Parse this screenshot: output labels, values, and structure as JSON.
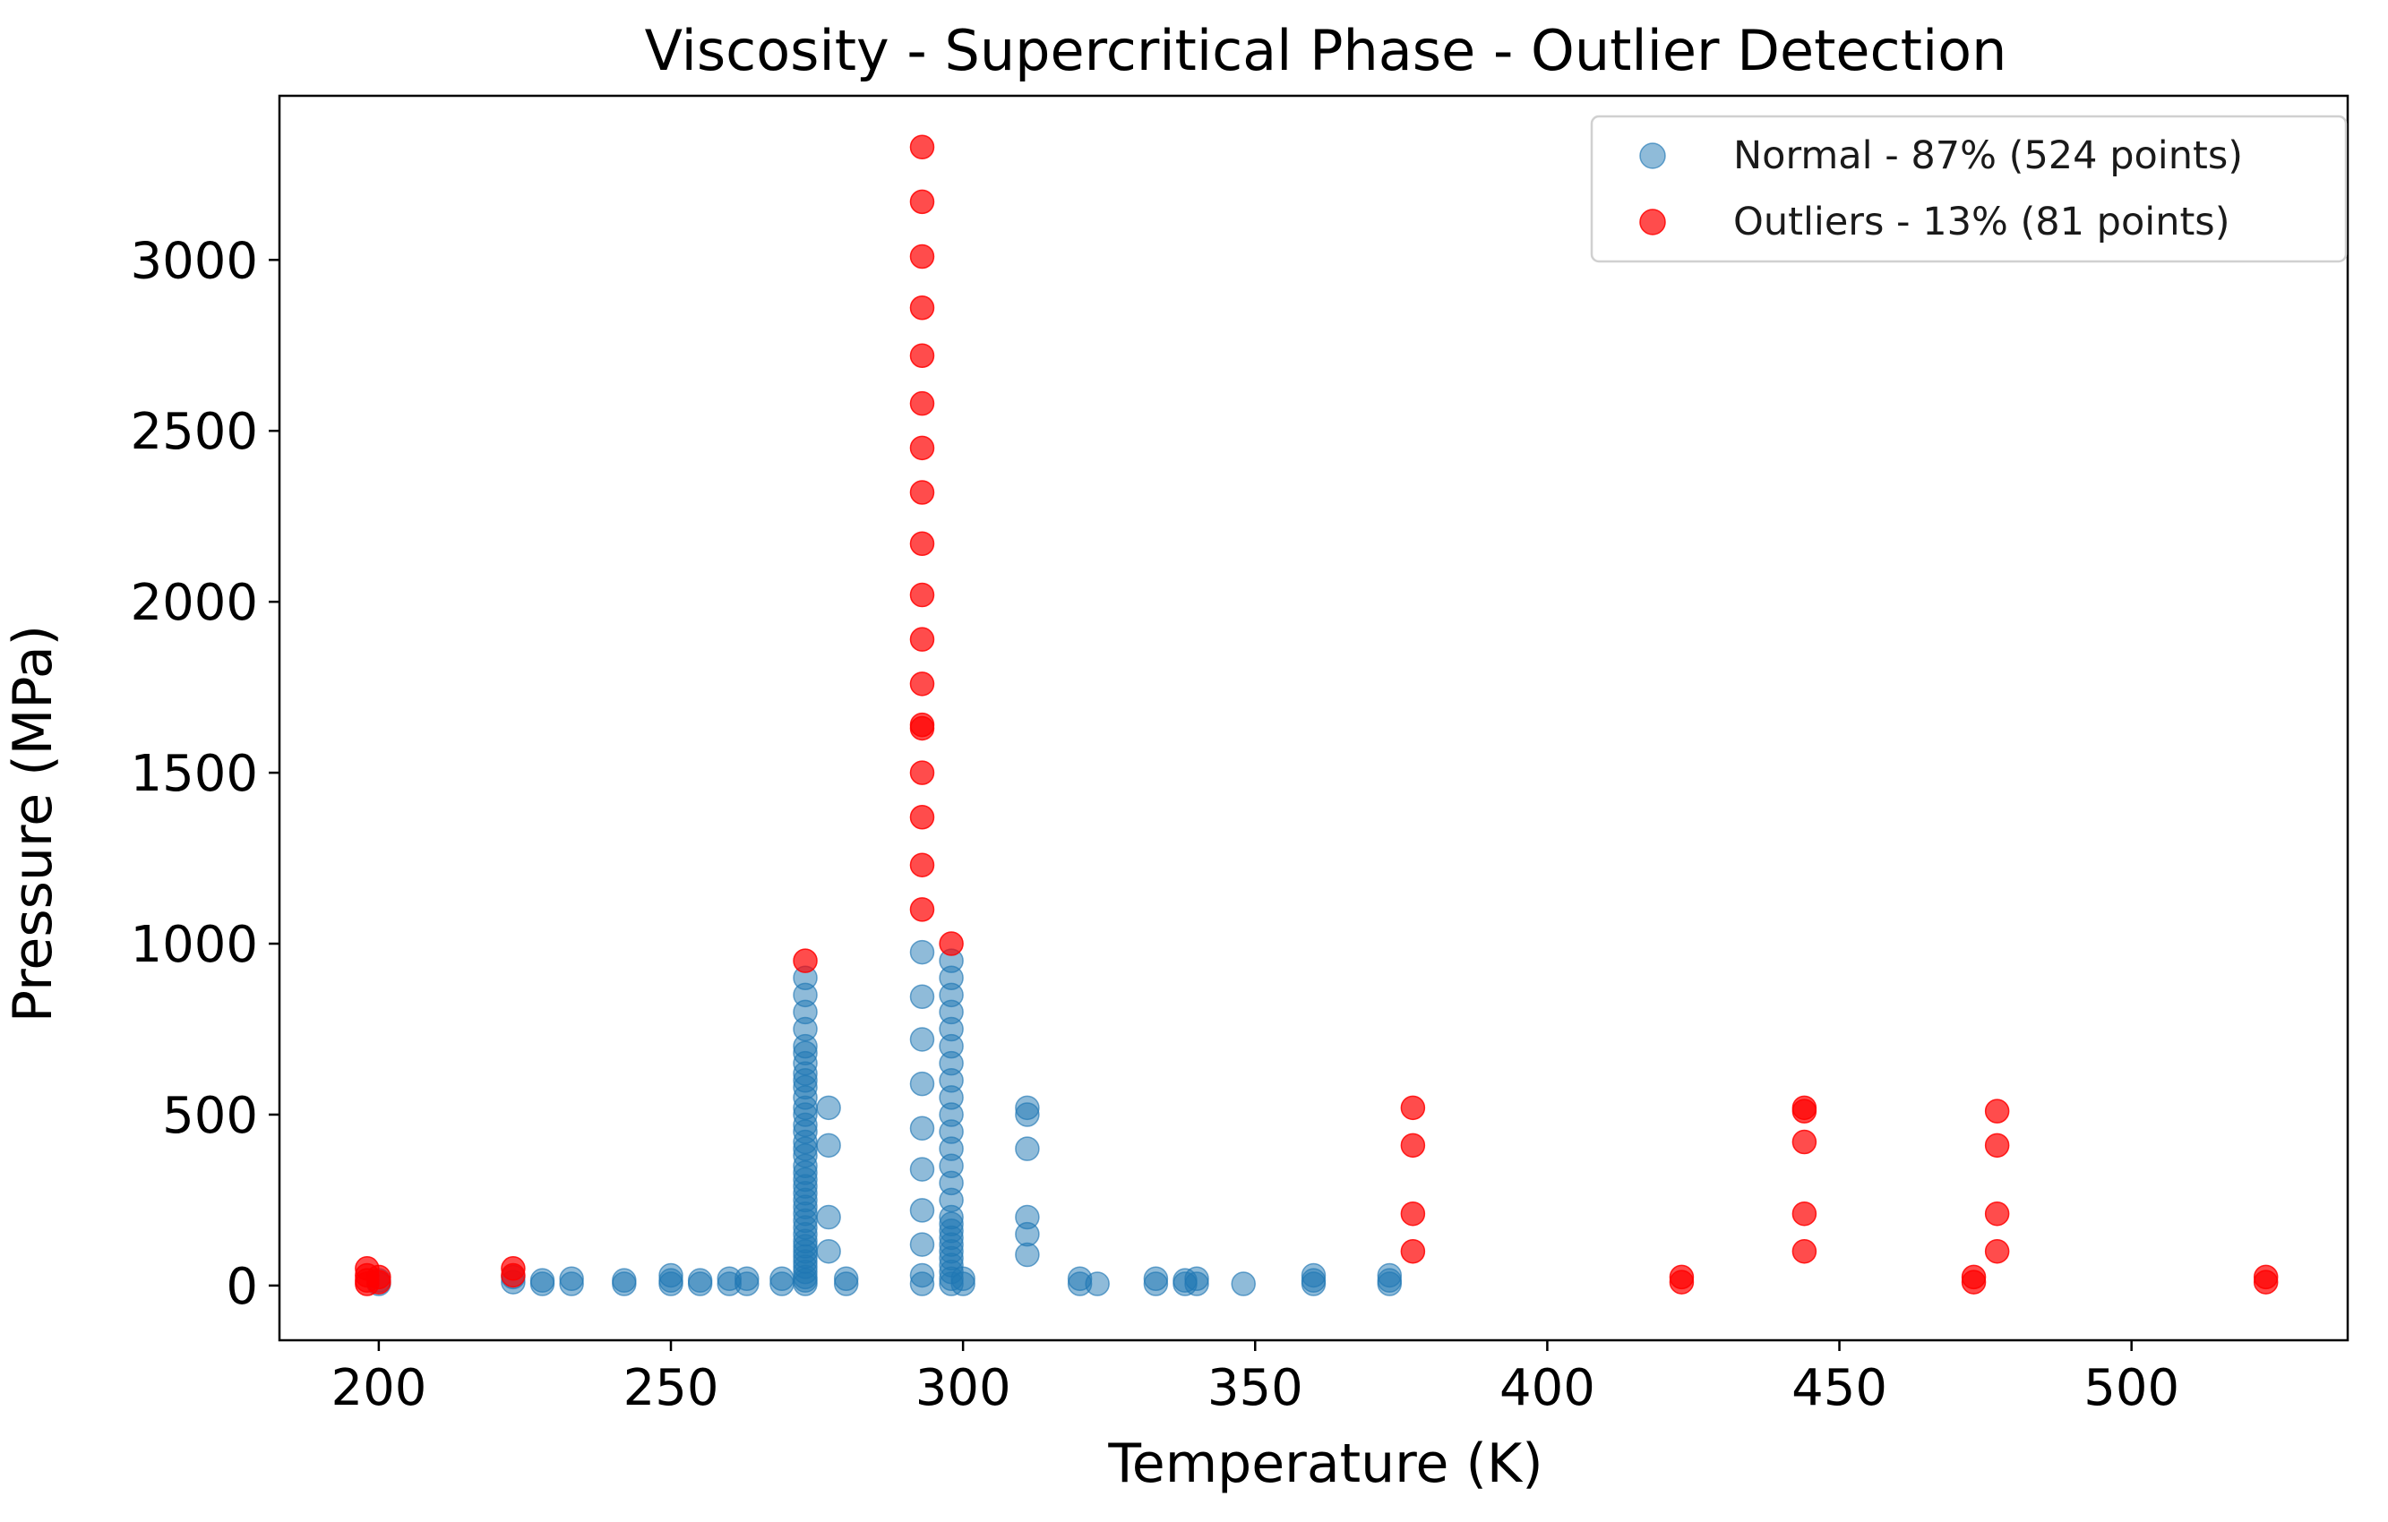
{
  "chart_data": {
    "type": "scatter",
    "title": "Viscosity - Supercritical Phase - Outlier Detection",
    "xlabel": "Temperature (K)",
    "ylabel": "Pressure (MPa)",
    "xlim": [
      183,
      537
    ],
    "ylim": [
      -160,
      3480
    ],
    "xticks": [
      200,
      250,
      300,
      350,
      400,
      450,
      500
    ],
    "yticks": [
      0,
      500,
      1000,
      1500,
      2000,
      2500,
      3000
    ],
    "grid": false,
    "legend_position": "top-right",
    "series": [
      {
        "name": "Normal - 87% (524 points)",
        "color": "#1f77b4",
        "alpha": 0.5,
        "points": [
          [
            200,
            5
          ],
          [
            200,
            15
          ],
          [
            223,
            10
          ],
          [
            223,
            25
          ],
          [
            228,
            5
          ],
          [
            228,
            15
          ],
          [
            233,
            5
          ],
          [
            233,
            20
          ],
          [
            242,
            5
          ],
          [
            242,
            15
          ],
          [
            250,
            5
          ],
          [
            250,
            15
          ],
          [
            250,
            30
          ],
          [
            255,
            5
          ],
          [
            255,
            15
          ],
          [
            260,
            5
          ],
          [
            260,
            20
          ],
          [
            263,
            5
          ],
          [
            263,
            20
          ],
          [
            269,
            5
          ],
          [
            269,
            20
          ],
          [
            273,
            5
          ],
          [
            273,
            15
          ],
          [
            273,
            25
          ],
          [
            273,
            40
          ],
          [
            273,
            55
          ],
          [
            273,
            70
          ],
          [
            273,
            85
          ],
          [
            273,
            100
          ],
          [
            273,
            115
          ],
          [
            273,
            130
          ],
          [
            273,
            150
          ],
          [
            273,
            170
          ],
          [
            273,
            190
          ],
          [
            273,
            210
          ],
          [
            273,
            230
          ],
          [
            273,
            250
          ],
          [
            273,
            270
          ],
          [
            273,
            290
          ],
          [
            273,
            310
          ],
          [
            273,
            330
          ],
          [
            273,
            350
          ],
          [
            273,
            380
          ],
          [
            273,
            400
          ],
          [
            273,
            420
          ],
          [
            273,
            450
          ],
          [
            273,
            470
          ],
          [
            273,
            500
          ],
          [
            273,
            520
          ],
          [
            273,
            550
          ],
          [
            273,
            580
          ],
          [
            273,
            600
          ],
          [
            273,
            620
          ],
          [
            273,
            650
          ],
          [
            273,
            680
          ],
          [
            273,
            700
          ],
          [
            273,
            750
          ],
          [
            273,
            800
          ],
          [
            273,
            850
          ],
          [
            273,
            900
          ],
          [
            277,
            100
          ],
          [
            277,
            200
          ],
          [
            277,
            410
          ],
          [
            277,
            520
          ],
          [
            280,
            5
          ],
          [
            280,
            20
          ],
          [
            293,
            5
          ],
          [
            293,
            30
          ],
          [
            293,
            120
          ],
          [
            293,
            220
          ],
          [
            293,
            340
          ],
          [
            293,
            460
          ],
          [
            293,
            590
          ],
          [
            293,
            720
          ],
          [
            293,
            845
          ],
          [
            293,
            975
          ],
          [
            298,
            5
          ],
          [
            298,
            20
          ],
          [
            298,
            40
          ],
          [
            298,
            60
          ],
          [
            298,
            80
          ],
          [
            298,
            100
          ],
          [
            298,
            120
          ],
          [
            298,
            140
          ],
          [
            298,
            160
          ],
          [
            298,
            180
          ],
          [
            298,
            200
          ],
          [
            298,
            250
          ],
          [
            298,
            300
          ],
          [
            298,
            350
          ],
          [
            298,
            400
          ],
          [
            298,
            450
          ],
          [
            298,
            500
          ],
          [
            298,
            550
          ],
          [
            298,
            600
          ],
          [
            298,
            650
          ],
          [
            298,
            700
          ],
          [
            298,
            750
          ],
          [
            298,
            800
          ],
          [
            298,
            850
          ],
          [
            298,
            900
          ],
          [
            298,
            950
          ],
          [
            300,
            5
          ],
          [
            300,
            20
          ],
          [
            311,
            90
          ],
          [
            311,
            150
          ],
          [
            311,
            200
          ],
          [
            311,
            400
          ],
          [
            311,
            500
          ],
          [
            311,
            520
          ],
          [
            320,
            5
          ],
          [
            320,
            20
          ],
          [
            323,
            5
          ],
          [
            333,
            5
          ],
          [
            333,
            20
          ],
          [
            338,
            5
          ],
          [
            338,
            15
          ],
          [
            340,
            5
          ],
          [
            340,
            20
          ],
          [
            348,
            5
          ],
          [
            360,
            5
          ],
          [
            360,
            15
          ],
          [
            360,
            30
          ],
          [
            373,
            5
          ],
          [
            373,
            15
          ],
          [
            373,
            30
          ]
        ]
      },
      {
        "name": "Outliers - 13% (81 points)",
        "color": "#ff0000",
        "alpha": 0.7,
        "points": [
          [
            198,
            5
          ],
          [
            198,
            15
          ],
          [
            198,
            30
          ],
          [
            198,
            50
          ],
          [
            200,
            10
          ],
          [
            200,
            25
          ],
          [
            223,
            30
          ],
          [
            223,
            50
          ],
          [
            273,
            950
          ],
          [
            293,
            1100
          ],
          [
            293,
            1230
          ],
          [
            293,
            1370
          ],
          [
            293,
            1500
          ],
          [
            293,
            1630
          ],
          [
            293,
            1640
          ],
          [
            293,
            1760
          ],
          [
            293,
            1890
          ],
          [
            293,
            2020
          ],
          [
            293,
            2170
          ],
          [
            293,
            2320
          ],
          [
            293,
            2450
          ],
          [
            293,
            2580
          ],
          [
            293,
            2720
          ],
          [
            293,
            2860
          ],
          [
            293,
            3010
          ],
          [
            293,
            3170
          ],
          [
            293,
            3330
          ],
          [
            298,
            1000
          ],
          [
            377,
            100
          ],
          [
            377,
            210
          ],
          [
            377,
            410
          ],
          [
            377,
            520
          ],
          [
            423,
            10
          ],
          [
            423,
            25
          ],
          [
            444,
            100
          ],
          [
            444,
            210
          ],
          [
            444,
            420
          ],
          [
            444,
            510
          ],
          [
            444,
            520
          ],
          [
            473,
            10
          ],
          [
            473,
            25
          ],
          [
            477,
            100
          ],
          [
            477,
            210
          ],
          [
            477,
            410
          ],
          [
            477,
            510
          ],
          [
            523,
            10
          ],
          [
            523,
            25
          ]
        ]
      }
    ]
  }
}
